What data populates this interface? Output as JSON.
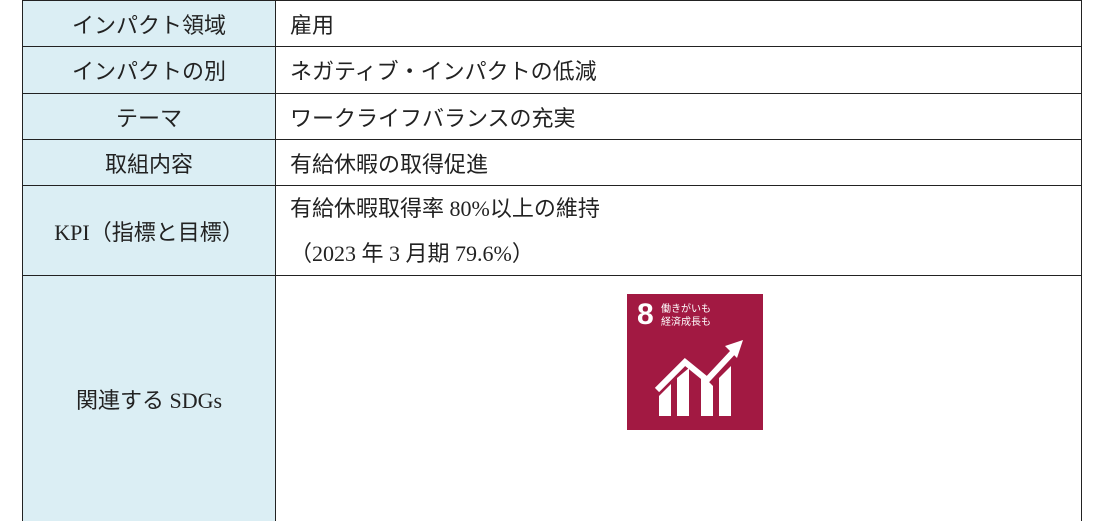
{
  "table": {
    "rows": [
      [
        "インパクト領域",
        "雇用"
      ],
      [
        "インパクトの別",
        "ネガティブ・インパクトの低減"
      ],
      [
        "テーマ",
        "ワークライフバランスの充実"
      ],
      [
        "取組内容",
        "有給休暇の取得促進"
      ],
      [
        "KPI（指標と目標）",
        [
          "有給休暇取得率 80%以上の維持",
          "（2023 年 3 月期 79.6%）"
        ]
      ],
      [
        "関連する SDGs",
        {
          "icon_number": "8",
          "icon_text": [
            "働きがいも",
            "経済成長も"
          ]
        }
      ]
    ]
  }
}
